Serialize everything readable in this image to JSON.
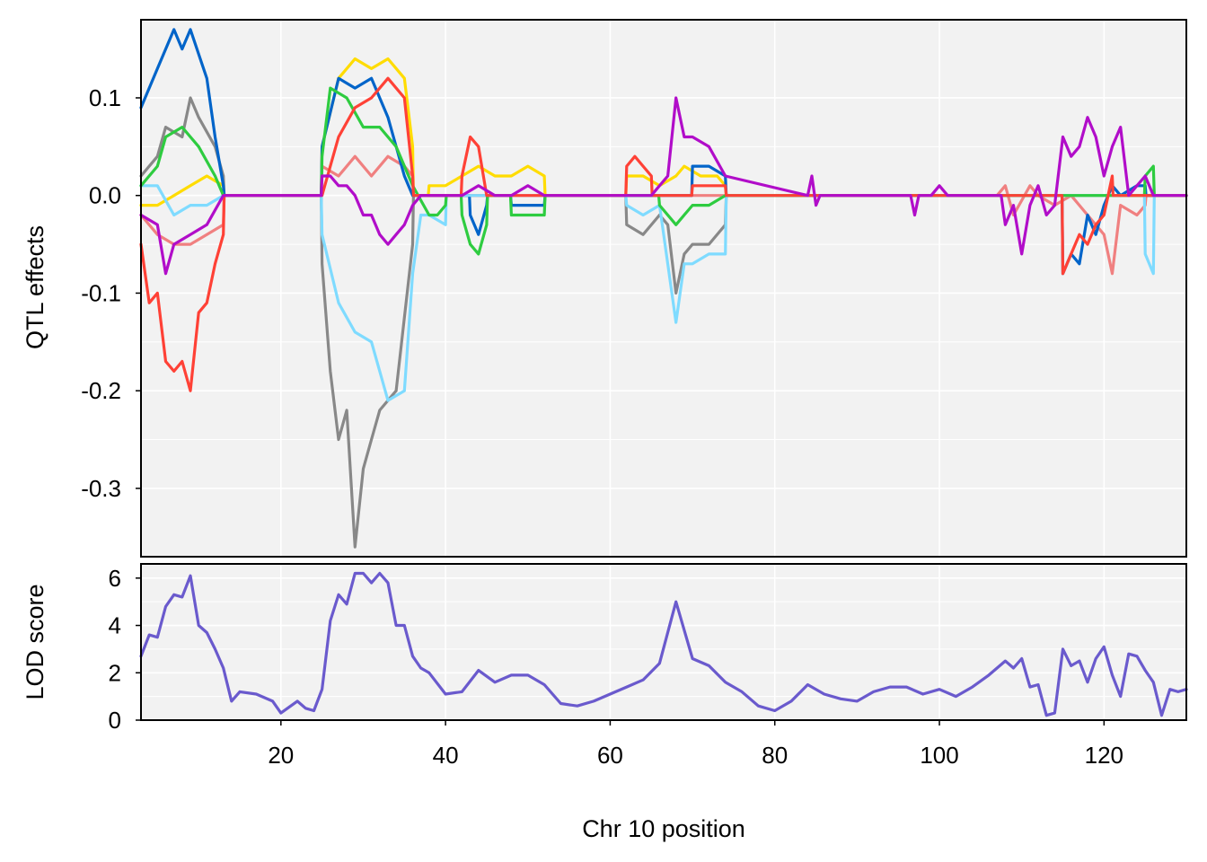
{
  "chart_data": {
    "type": "line",
    "xlabel": "Chr 10 position",
    "xlim": [
      3,
      130
    ],
    "x_ticks": [
      "20",
      "40",
      "60",
      "80",
      "100",
      "120"
    ],
    "x_tick_values": [
      20,
      40,
      60,
      80,
      100,
      120
    ],
    "grid": true,
    "panels": [
      {
        "name": "effects",
        "ylabel": "QTL effects",
        "ylim": [
          -0.37,
          0.18
        ],
        "y_ticks": [
          "0.1",
          "0.0",
          "-0.1",
          "-0.2",
          "-0.3"
        ],
        "y_tick_values": [
          0.1,
          0.0,
          -0.1,
          -0.2,
          -0.3
        ],
        "series": [
          {
            "color": "#FFDC00",
            "x": [
              3,
              5,
              7,
              9,
              11,
              13,
              13.1,
              24.9,
              25,
              27,
              29,
              31,
              33,
              35,
              36,
              36.1,
              37.9,
              38,
              40,
              42,
              44,
              46,
              47,
              48,
              50,
              52,
              52.1,
              61.9,
              62,
              64,
              66,
              68,
              69,
              71,
              73,
              74,
              74.1,
              130
            ],
            "y": [
              -0.01,
              -0.01,
              0.0,
              0.01,
              0.02,
              0.01,
              0.0,
              0.0,
              0.05,
              0.12,
              0.14,
              0.13,
              0.14,
              0.12,
              0.05,
              0.0,
              0.0,
              0.01,
              0.01,
              0.02,
              0.03,
              0.02,
              0.02,
              0.02,
              0.03,
              0.02,
              0.0,
              0.0,
              0.02,
              0.02,
              0.01,
              0.02,
              0.03,
              0.02,
              0.02,
              0.01,
              0.0,
              0.0
            ]
          },
          {
            "color": "#888888",
            "x": [
              3,
              5,
              6,
              8,
              9,
              10,
              12,
              13,
              13.1,
              24.9,
              25,
              26,
              27,
              28,
              29,
              30,
              31,
              32,
              34,
              36,
              36.1,
              61.9,
              62,
              64,
              66,
              67,
              68,
              69,
              70,
              72,
              74,
              74.1,
              130
            ],
            "y": [
              0.02,
              0.04,
              0.07,
              0.06,
              0.1,
              0.08,
              0.05,
              0.02,
              0.0,
              0.0,
              -0.07,
              -0.18,
              -0.25,
              -0.22,
              -0.36,
              -0.28,
              -0.25,
              -0.22,
              -0.2,
              -0.05,
              0.0,
              0.0,
              -0.03,
              -0.04,
              -0.02,
              -0.03,
              -0.1,
              -0.06,
              -0.05,
              -0.05,
              -0.03,
              0.0,
              0.0
            ]
          },
          {
            "color": "#F08080",
            "x": [
              3,
              5,
              7,
              9,
              11,
              13,
              13.1,
              24.9,
              25,
              27,
              29,
              31,
              33,
              35,
              36,
              36.1,
              107,
              108,
              109,
              111,
              112,
              114,
              116,
              118,
              120,
              121,
              122,
              124,
              125,
              125.1,
              130
            ],
            "y": [
              -0.02,
              -0.04,
              -0.05,
              -0.05,
              -0.04,
              -0.03,
              0.0,
              0.0,
              0.03,
              0.02,
              0.04,
              0.02,
              0.04,
              0.03,
              0.02,
              0.0,
              0.0,
              0.01,
              -0.02,
              0.01,
              0.0,
              -0.01,
              0.0,
              -0.02,
              -0.04,
              -0.08,
              -0.01,
              -0.02,
              -0.01,
              0.0,
              0.0
            ]
          },
          {
            "color": "#0064C9",
            "x": [
              3,
              5,
              7,
              8,
              9,
              11,
              12,
              13,
              13.1,
              24.9,
              25,
              27,
              29,
              31,
              33,
              35,
              36,
              36.1,
              42.9,
              43,
              44,
              45,
              45.1,
              47.9,
              48,
              50,
              52,
              52.1,
              69.9,
              70,
              72,
              74,
              74.1,
              114.9,
              115,
              116,
              117,
              118,
              119,
              120,
              121,
              122,
              124,
              125,
              125.1,
              130
            ],
            "y": [
              0.09,
              0.13,
              0.17,
              0.15,
              0.17,
              0.12,
              0.06,
              0.01,
              0.0,
              0.0,
              0.05,
              0.12,
              0.11,
              0.12,
              0.08,
              0.02,
              0.0,
              0.0,
              0.0,
              -0.02,
              -0.04,
              -0.01,
              0.0,
              0.0,
              -0.01,
              -0.01,
              -0.01,
              0.0,
              0.0,
              0.03,
              0.03,
              0.02,
              0.0,
              0.0,
              -0.08,
              -0.06,
              -0.07,
              -0.02,
              -0.04,
              -0.01,
              0.01,
              0.0,
              0.01,
              0.01,
              0.0,
              0.0
            ]
          },
          {
            "color": "#7FDBFF",
            "x": [
              3,
              5,
              7,
              9,
              11,
              13,
              13.1,
              24.9,
              25,
              27,
              29,
              31,
              33,
              35,
              36,
              37,
              38,
              40,
              40.1,
              61.9,
              62,
              64,
              66,
              68,
              69,
              70,
              72,
              74,
              74.1,
              124.9,
              125,
              126,
              126.1,
              130
            ],
            "y": [
              0.01,
              0.01,
              -0.02,
              -0.01,
              -0.01,
              0.0,
              0.0,
              0.0,
              -0.04,
              -0.11,
              -0.14,
              -0.15,
              -0.21,
              -0.2,
              -0.08,
              -0.02,
              -0.02,
              -0.03,
              0.0,
              0.0,
              -0.01,
              -0.02,
              -0.01,
              -0.13,
              -0.07,
              -0.07,
              -0.06,
              -0.06,
              0.0,
              0.0,
              -0.06,
              -0.08,
              0.0,
              0.0
            ]
          },
          {
            "color": "#2ECC40",
            "x": [
              3,
              5,
              6,
              8,
              10,
              12,
              13,
              13.1,
              24.9,
              25,
              26,
              28,
              30,
              32,
              34,
              36,
              38,
              39,
              40,
              40.1,
              41.9,
              42,
              43,
              44,
              45,
              45.1,
              47.9,
              48,
              50,
              52,
              52.1,
              65.9,
              66,
              68,
              70,
              72,
              74,
              74.1,
              124.9,
              125,
              126,
              126.1,
              130
            ],
            "y": [
              0.01,
              0.03,
              0.06,
              0.07,
              0.05,
              0.02,
              0.0,
              0.0,
              0.0,
              0.04,
              0.11,
              0.1,
              0.07,
              0.07,
              0.05,
              0.01,
              -0.02,
              -0.02,
              -0.01,
              0.0,
              0.0,
              -0.02,
              -0.05,
              -0.06,
              -0.03,
              0.0,
              0.0,
              -0.02,
              -0.02,
              -0.02,
              0.0,
              0.0,
              -0.01,
              -0.03,
              -0.01,
              -0.01,
              0.0,
              0.0,
              0.0,
              0.02,
              0.03,
              0.0,
              0.0
            ]
          },
          {
            "color": "#FF4136",
            "x": [
              3,
              4,
              5,
              6,
              7,
              8,
              9,
              10,
              11,
              12,
              13,
              13.1,
              24.9,
              25,
              27,
              29,
              31,
              33,
              35,
              36,
              36.1,
              41.9,
              42,
              43,
              44,
              45,
              45.1,
              61.9,
              62,
              63,
              64,
              65,
              65.1,
              69.9,
              70,
              72,
              73,
              74,
              74.1,
              114.9,
              115,
              116,
              117,
              118,
              119,
              120,
              121,
              121.1,
              130
            ],
            "y": [
              -0.05,
              -0.11,
              -0.1,
              -0.17,
              -0.18,
              -0.17,
              -0.2,
              -0.12,
              -0.11,
              -0.07,
              -0.04,
              0.0,
              0.0,
              0.0,
              0.06,
              0.09,
              0.1,
              0.12,
              0.1,
              0.02,
              0.0,
              0.0,
              0.02,
              0.06,
              0.05,
              0.0,
              0.0,
              0.0,
              0.03,
              0.04,
              0.03,
              0.02,
              0.0,
              0.0,
              0.01,
              0.01,
              0.01,
              0.01,
              0.0,
              0.0,
              -0.08,
              -0.06,
              -0.04,
              -0.05,
              -0.03,
              -0.02,
              0.02,
              0.0,
              0.0
            ]
          },
          {
            "color": "#B10DC9",
            "x": [
              3,
              5,
              6,
              7,
              9,
              11,
              13,
              13.1,
              24.9,
              25,
              26,
              27,
              28,
              29,
              30,
              31,
              32,
              33,
              34,
              35,
              36,
              37,
              38,
              40,
              42,
              44,
              46,
              48,
              50,
              52,
              60,
              65,
              66,
              67,
              68,
              69,
              70,
              72,
              74,
              84,
              84.5,
              85,
              85.5,
              96.5,
              97,
              97.5,
              99,
              100,
              101,
              101.5,
              107.5,
              108,
              109,
              110,
              111,
              112,
              113,
              114,
              115,
              116,
              117,
              118,
              119,
              120,
              121,
              122,
              123,
              124,
              125,
              126,
              130
            ],
            "y": [
              -0.02,
              -0.03,
              -0.08,
              -0.05,
              -0.04,
              -0.03,
              0.0,
              0.0,
              0.0,
              0.02,
              0.02,
              0.01,
              0.01,
              0.0,
              -0.02,
              -0.02,
              -0.04,
              -0.05,
              -0.04,
              -0.03,
              -0.01,
              0.0,
              0.0,
              0.0,
              0.0,
              0.01,
              0.0,
              0.0,
              0.01,
              0.0,
              0.0,
              0.0,
              0.01,
              0.02,
              0.1,
              0.06,
              0.06,
              0.05,
              0.02,
              0.0,
              0.02,
              -0.01,
              0.0,
              0.0,
              -0.02,
              0.0,
              0.0,
              0.01,
              0.0,
              0.0,
              0.0,
              -0.03,
              -0.01,
              -0.06,
              -0.01,
              0.01,
              -0.02,
              -0.01,
              0.06,
              0.04,
              0.05,
              0.08,
              0.06,
              0.02,
              0.05,
              0.07,
              0.0,
              0.01,
              0.02,
              0.0,
              0.0
            ]
          }
        ]
      },
      {
        "name": "lod",
        "ylabel": "LOD score",
        "ylim": [
          0,
          6.6
        ],
        "y_ticks": [
          "6",
          "4",
          "2",
          "0"
        ],
        "y_tick_values": [
          6,
          4,
          2,
          0
        ],
        "series": [
          {
            "color": "#6A5ACD",
            "x": [
              3,
              4,
              5,
              6,
              7,
              8,
              9,
              10,
              11,
              12,
              13,
              14,
              15,
              17,
              19,
              20,
              22,
              23,
              24,
              25,
              26,
              27,
              28,
              29,
              30,
              31,
              32,
              33,
              34,
              35,
              36,
              37,
              38,
              40,
              42,
              44,
              46,
              48,
              50,
              52,
              54,
              56,
              58,
              60,
              62,
              64,
              66,
              68,
              69,
              70,
              72,
              74,
              76,
              78,
              80,
              82,
              84,
              86,
              88,
              90,
              92,
              94,
              96,
              98,
              100,
              102,
              104,
              106,
              108,
              109,
              110,
              111,
              112,
              113,
              114,
              115,
              116,
              117,
              118,
              119,
              120,
              121,
              122,
              123,
              124,
              125,
              126,
              127,
              128,
              129,
              130
            ],
            "y": [
              2.7,
              3.6,
              3.5,
              4.8,
              5.3,
              5.2,
              6.1,
              4.0,
              3.7,
              3.0,
              2.2,
              0.8,
              1.2,
              1.1,
              0.8,
              0.3,
              0.8,
              0.5,
              0.4,
              1.3,
              4.2,
              5.3,
              4.9,
              6.2,
              6.2,
              5.8,
              6.2,
              5.8,
              4.0,
              4.0,
              2.7,
              2.2,
              2.0,
              1.1,
              1.2,
              2.1,
              1.6,
              1.9,
              1.9,
              1.5,
              0.7,
              0.6,
              0.8,
              1.1,
              1.4,
              1.7,
              2.4,
              5.0,
              3.8,
              2.6,
              2.3,
              1.6,
              1.2,
              0.6,
              0.4,
              0.8,
              1.5,
              1.1,
              0.9,
              0.8,
              1.2,
              1.4,
              1.4,
              1.1,
              1.3,
              1.0,
              1.4,
              1.9,
              2.5,
              2.2,
              2.6,
              1.4,
              1.5,
              0.2,
              0.3,
              3.0,
              2.3,
              2.5,
              1.6,
              2.6,
              3.1,
              1.9,
              1.0,
              2.8,
              2.7,
              2.1,
              1.6,
              0.2,
              1.3,
              1.2,
              1.3
            ]
          }
        ]
      }
    ]
  }
}
